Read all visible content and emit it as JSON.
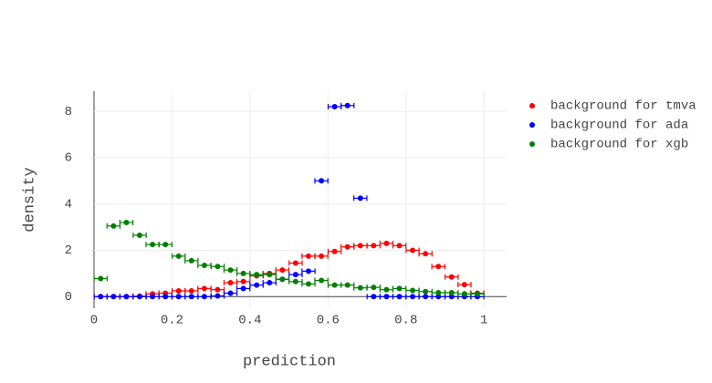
{
  "chart_data": {
    "type": "scatter",
    "x_label": "prediction",
    "y_label": "density",
    "x": [
      0.017,
      0.05,
      0.083,
      0.117,
      0.15,
      0.183,
      0.217,
      0.25,
      0.283,
      0.317,
      0.35,
      0.383,
      0.417,
      0.45,
      0.483,
      0.517,
      0.55,
      0.583,
      0.617,
      0.65,
      0.683,
      0.717,
      0.75,
      0.783,
      0.817,
      0.85,
      0.883,
      0.917,
      0.95,
      0.983
    ],
    "x_error": 0.0167,
    "series": [
      {
        "name": "background for tmva",
        "color": "#ff0000",
        "values": [
          0,
          0,
          0,
          0.02,
          0.12,
          0.15,
          0.25,
          0.25,
          0.35,
          0.3,
          0.6,
          0.65,
          0.9,
          1.0,
          1.15,
          1.45,
          1.75,
          1.75,
          1.95,
          2.15,
          2.2,
          2.2,
          2.3,
          2.2,
          2.0,
          1.85,
          1.3,
          0.85,
          0.52,
          0.15
        ]
      },
      {
        "name": "background for ada",
        "color": "#0000ff",
        "values": [
          0,
          0,
          0,
          0,
          0,
          0,
          0,
          0,
          0,
          0.03,
          0.15,
          0.35,
          0.5,
          0.6,
          0.75,
          0.95,
          1.1,
          5.0,
          8.2,
          8.25,
          4.25,
          0,
          0,
          0,
          0,
          0,
          0,
          0,
          0,
          0
        ]
      },
      {
        "name": "background for xgb",
        "color": "#008000",
        "values": [
          0.78,
          3.05,
          3.2,
          2.65,
          2.25,
          2.25,
          1.75,
          1.55,
          1.35,
          1.3,
          1.15,
          1.0,
          0.95,
          0.95,
          0.75,
          0.65,
          0.55,
          0.7,
          0.5,
          0.5,
          0.38,
          0.4,
          0.3,
          0.35,
          0.27,
          0.22,
          0.17,
          0.17,
          0.12,
          0.12
        ]
      }
    ],
    "xlim": [
      0,
      1.058
    ],
    "ylim": [
      -0.5,
      8.87
    ],
    "xticks": [
      0,
      0.2,
      0.4,
      0.6,
      0.8,
      1
    ],
    "yticks": [
      0,
      2,
      4,
      6,
      8
    ],
    "grid": true,
    "legend": "right"
  }
}
